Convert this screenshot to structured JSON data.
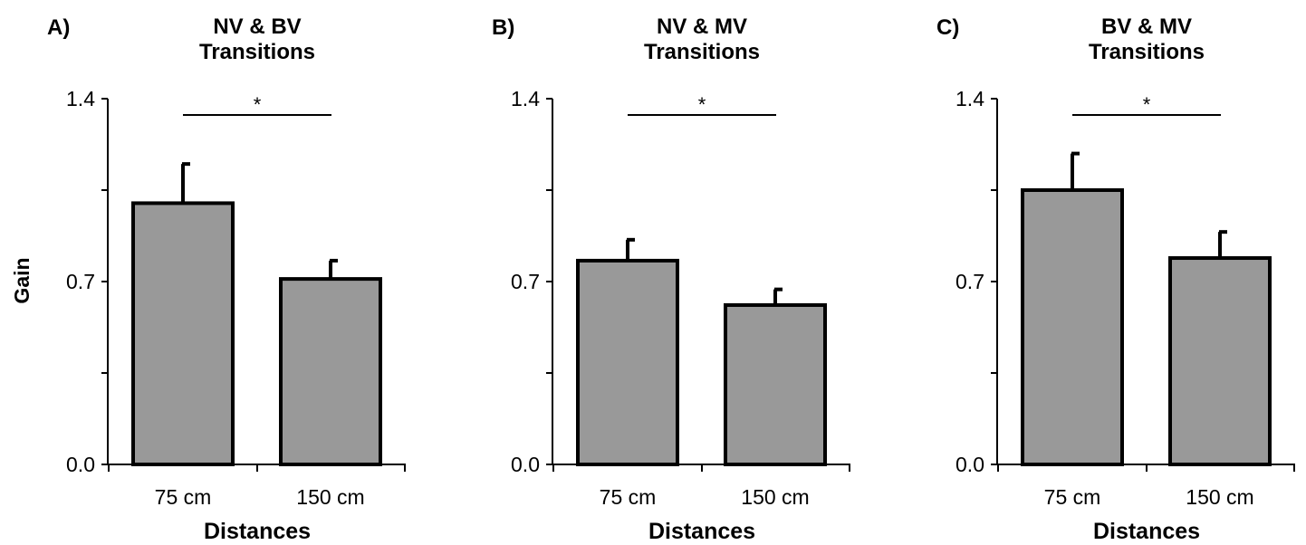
{
  "colors": {
    "bar_fill": "#999999",
    "bar_stroke": "#000000",
    "axis": "#000000",
    "background": "#ffffff"
  },
  "chart_data": [
    {
      "type": "bar",
      "panel": "A)",
      "title": [
        "NV & BV",
        "Transitions"
      ],
      "categories": [
        "75 cm",
        "150 cm"
      ],
      "values": [
        1.0,
        0.71
      ],
      "errors": [
        0.15,
        0.07
      ],
      "xlabel": "Distances",
      "ylabel": "Gain",
      "ylim": [
        0,
        1.4
      ],
      "yticks": [
        "0.0",
        "0.7",
        "1.4"
      ],
      "minor_ticks": [
        0.35,
        1.05
      ],
      "significance": "*"
    },
    {
      "type": "bar",
      "panel": "B)",
      "title": [
        "NV & MV",
        "Transitions"
      ],
      "categories": [
        "75 cm",
        "150 cm"
      ],
      "values": [
        0.78,
        0.61
      ],
      "errors": [
        0.08,
        0.06
      ],
      "xlabel": "Distances",
      "ylabel": "",
      "ylim": [
        0,
        1.4
      ],
      "yticks": [
        "0.0",
        "0.7",
        "1.4"
      ],
      "minor_ticks": [
        0.35,
        1.05
      ],
      "significance": "*"
    },
    {
      "type": "bar",
      "panel": "C)",
      "title": [
        "BV & MV",
        "Transitions"
      ],
      "categories": [
        "75 cm",
        "150 cm"
      ],
      "values": [
        1.05,
        0.79
      ],
      "errors": [
        0.14,
        0.1
      ],
      "xlabel": "Distances",
      "ylabel": "",
      "ylim": [
        0,
        1.4
      ],
      "yticks": [
        "0.0",
        "0.7",
        "1.4"
      ],
      "minor_ticks": [
        0.35,
        1.05
      ],
      "significance": "*"
    }
  ]
}
